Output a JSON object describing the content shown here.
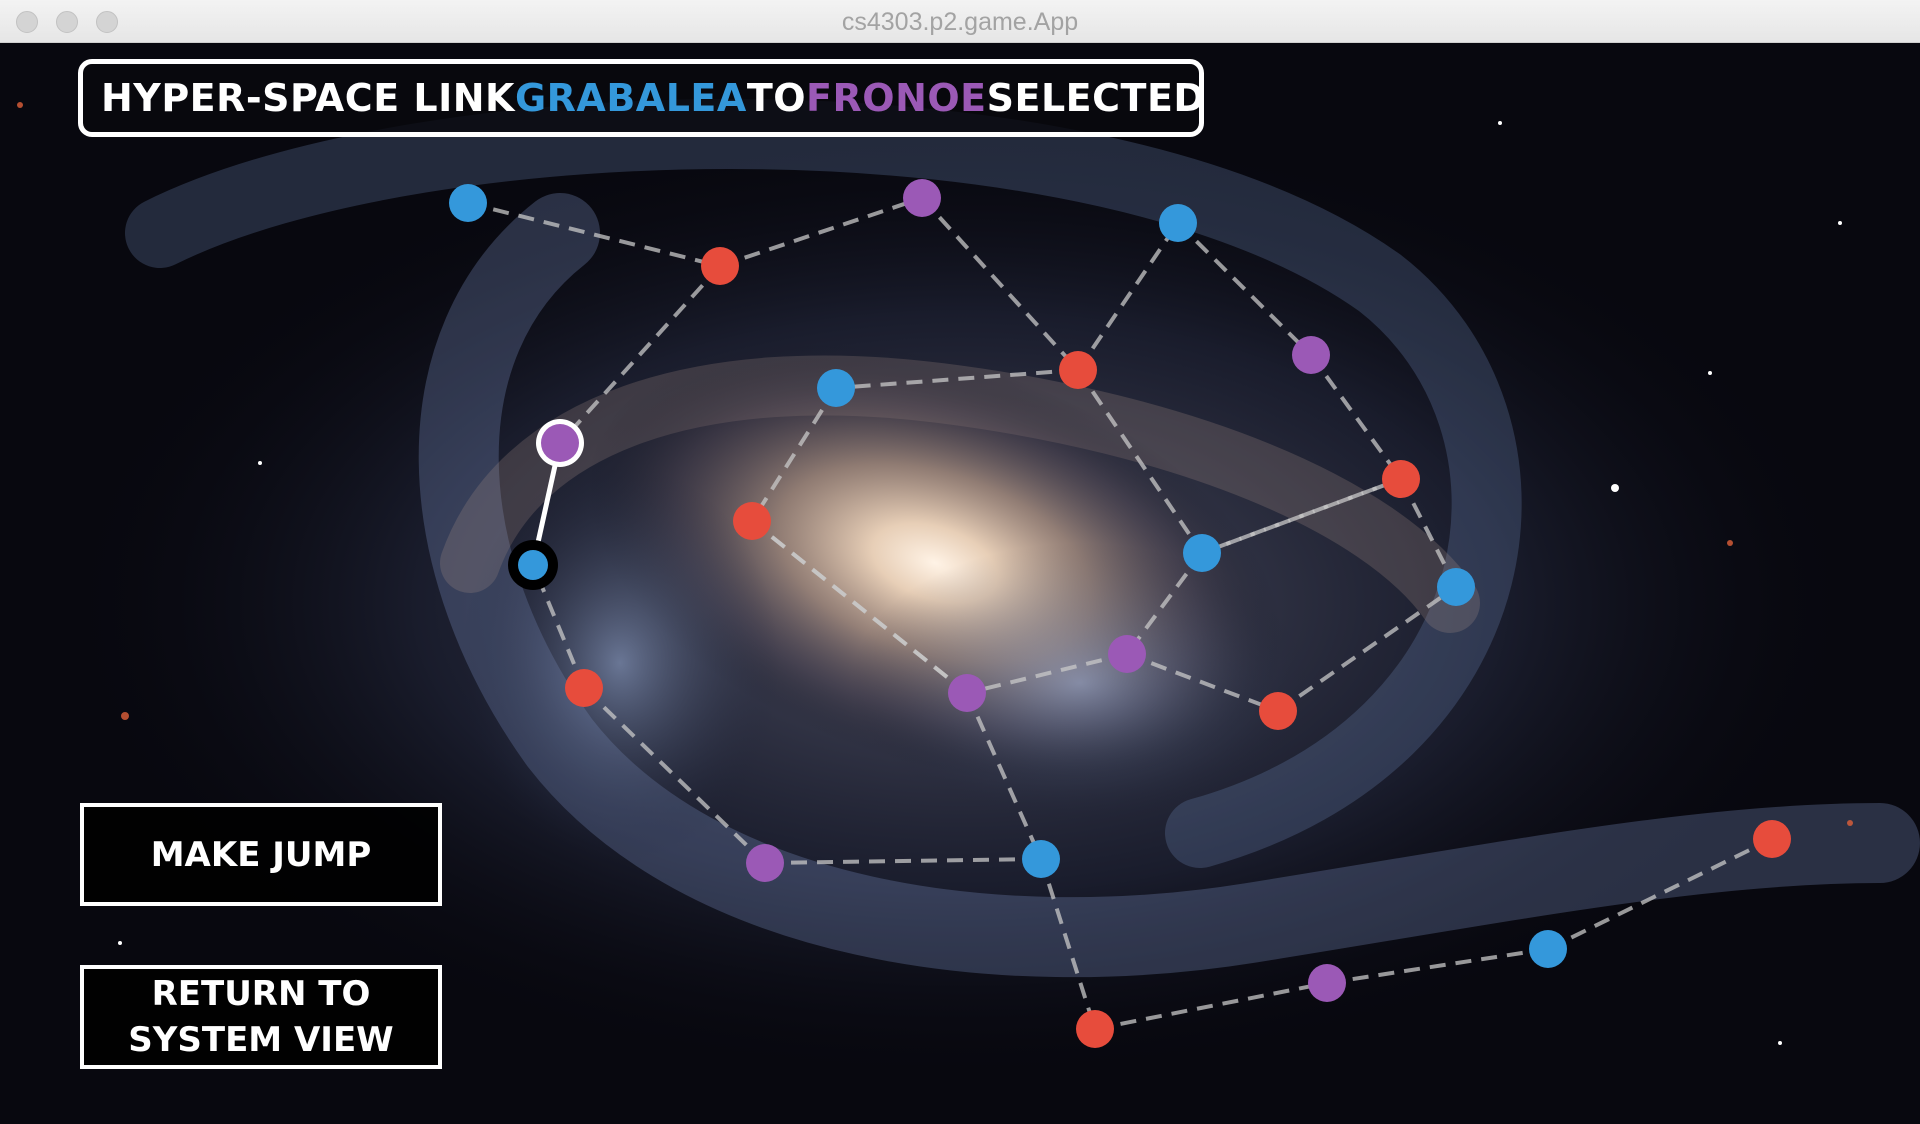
{
  "window": {
    "title": "cs4303.p2.game.App"
  },
  "banner": {
    "prefix": "HYPER-SPACE LINK",
    "from_system": "GRABALEA",
    "middle": "TO",
    "to_system": "FRONOE",
    "suffix": "SELECTED"
  },
  "buttons": {
    "make_jump": "MAKE JUMP",
    "return_line1": "RETURN TO",
    "return_line2": "SYSTEM VIEW"
  },
  "colors": {
    "blue": "#3498db",
    "red": "#e74c3c",
    "purple": "#9b59b6",
    "link": "#c8c8c8",
    "selected_link": "#ffffff",
    "current_ring": "#000000",
    "selected_ring": "#ffffff"
  },
  "map": {
    "current_system": "GRABALEA",
    "selected_system": "FRONOE",
    "node_colors": [
      "blue",
      "purple",
      "blue",
      "red",
      "red",
      "blue",
      "purple",
      "purple",
      "red",
      "red",
      "blue",
      "blue",
      "red",
      "purple",
      "purple",
      "red",
      "red",
      "purple",
      "blue",
      "red",
      "blue",
      "purple",
      "blue",
      "red"
    ],
    "links": [
      [
        0,
        3
      ],
      [
        3,
        1
      ],
      [
        1,
        4
      ],
      [
        4,
        2
      ],
      [
        2,
        6
      ],
      [
        6,
        8
      ],
      [
        4,
        5
      ],
      [
        5,
        9
      ],
      [
        3,
        7
      ],
      [
        7,
        10
      ],
      [
        8,
        11
      ],
      [
        11,
        12
      ],
      [
        12,
        20
      ],
      [
        9,
        13
      ],
      [
        13,
        14
      ],
      [
        13,
        11
      ],
      [
        11,
        8
      ],
      [
        9,
        15
      ],
      [
        15,
        16
      ],
      [
        16,
        17
      ],
      [
        17,
        18
      ],
      [
        18,
        19
      ],
      [
        19,
        21
      ],
      [
        21,
        22
      ],
      [
        22,
        23
      ],
      [
        14,
        13
      ],
      [
        12,
        18
      ],
      [
        4,
        11
      ]
    ]
  }
}
